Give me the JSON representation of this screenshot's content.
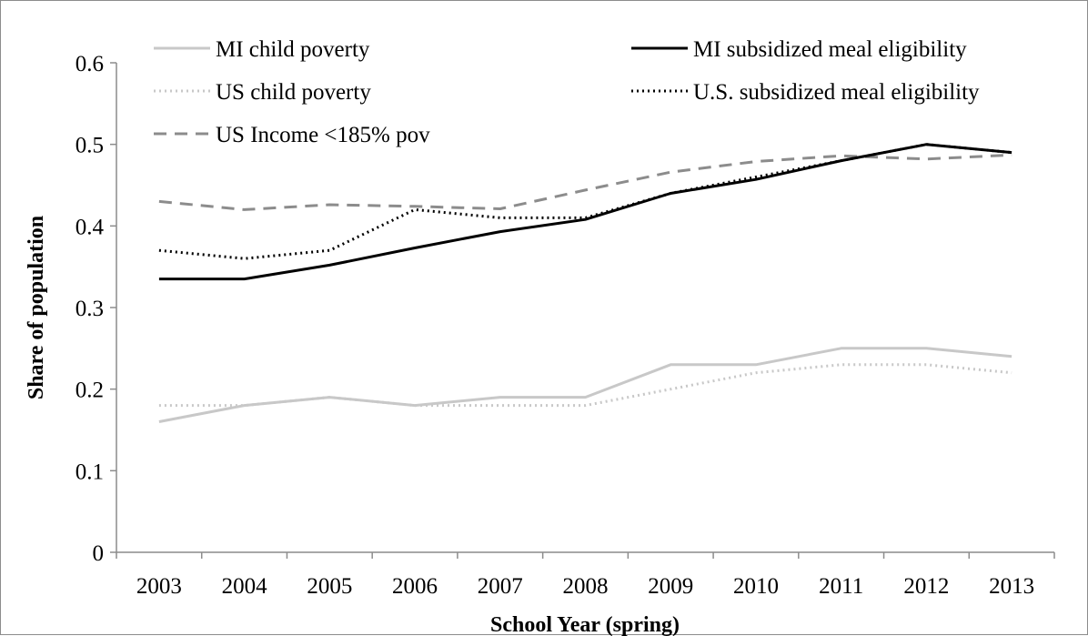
{
  "chart_data": {
    "type": "line",
    "title": "",
    "xlabel": "School Year (spring)",
    "ylabel": "Share of population",
    "categories": [
      "2003",
      "2004",
      "2005",
      "2006",
      "2007",
      "2008",
      "2009",
      "2010",
      "2011",
      "2012",
      "2013"
    ],
    "y_ticks": [
      "0",
      "0.1",
      "0.2",
      "0.3",
      "0.4",
      "0.5",
      "0.6"
    ],
    "ylim": [
      0,
      0.6
    ],
    "grid": false,
    "legend_position": "top",
    "series": [
      {
        "name": "MI child poverty",
        "color": "#c8c8c8",
        "style": "solid",
        "values": [
          0.16,
          0.18,
          0.19,
          0.18,
          0.19,
          0.19,
          0.23,
          0.23,
          0.25,
          0.25,
          0.24
        ]
      },
      {
        "name": "MI subsidized meal eligibility",
        "color": "#000000",
        "style": "solid",
        "values": [
          0.335,
          0.335,
          0.352,
          0.373,
          0.393,
          0.408,
          0.44,
          0.457,
          0.48,
          0.5,
          0.49
        ]
      },
      {
        "name": "US child poverty",
        "color": "#c8c8c8",
        "style": "dotted",
        "values": [
          0.18,
          0.18,
          0.19,
          0.18,
          0.18,
          0.18,
          0.2,
          0.22,
          0.23,
          0.23,
          0.22
        ]
      },
      {
        "name": "U.S. subsidized meal eligibility",
        "color": "#000000",
        "style": "dotted",
        "values": [
          0.37,
          0.36,
          0.37,
          0.42,
          0.41,
          0.41,
          0.44,
          0.46,
          0.48,
          0.5,
          0.49
        ]
      },
      {
        "name": "US Income <185% pov",
        "color": "#8c8c8c",
        "style": "dashed",
        "values": [
          0.43,
          0.42,
          0.426,
          0.424,
          0.421,
          0.444,
          0.466,
          0.479,
          0.486,
          0.482,
          0.487
        ]
      }
    ]
  }
}
